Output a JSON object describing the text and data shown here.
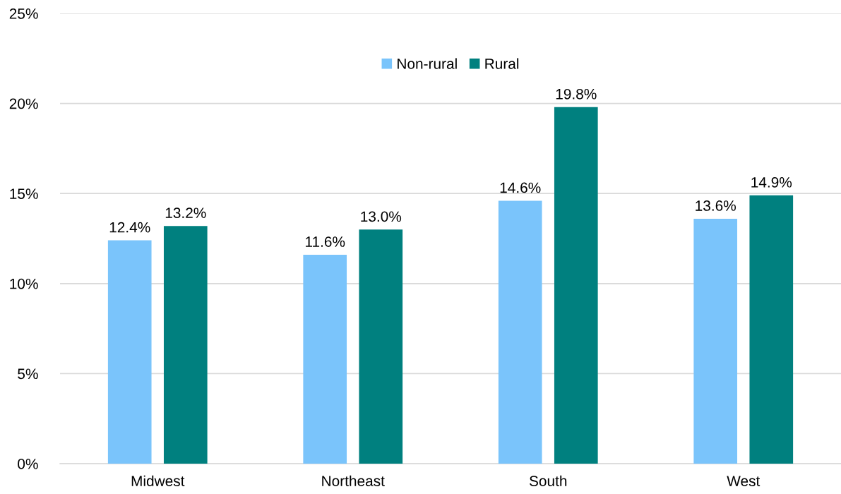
{
  "chart_data": {
    "type": "bar",
    "categories": [
      "Midwest",
      "Northeast",
      "South",
      "West"
    ],
    "series": [
      {
        "name": "Non-rural",
        "color": "#7ac4fb",
        "values": [
          12.4,
          11.6,
          14.6,
          13.6
        ],
        "value_labels": [
          "12.4%",
          "11.6%",
          "14.6%",
          "13.6%"
        ]
      },
      {
        "name": "Rural",
        "color": "#00807f",
        "values": [
          13.2,
          13.0,
          19.8,
          14.9
        ],
        "value_labels": [
          "13.2%",
          "13.0%",
          "19.8%",
          "14.9%"
        ]
      }
    ],
    "ylim": [
      0,
      25
    ],
    "yticks": [
      {
        "value": 0,
        "label": "0%"
      },
      {
        "value": 5,
        "label": "5%"
      },
      {
        "value": 10,
        "label": "10%"
      },
      {
        "value": 15,
        "label": "15%"
      },
      {
        "value": 20,
        "label": "20%"
      },
      {
        "value": 25,
        "label": "25%"
      }
    ],
    "grid": "y",
    "legend": "top"
  }
}
